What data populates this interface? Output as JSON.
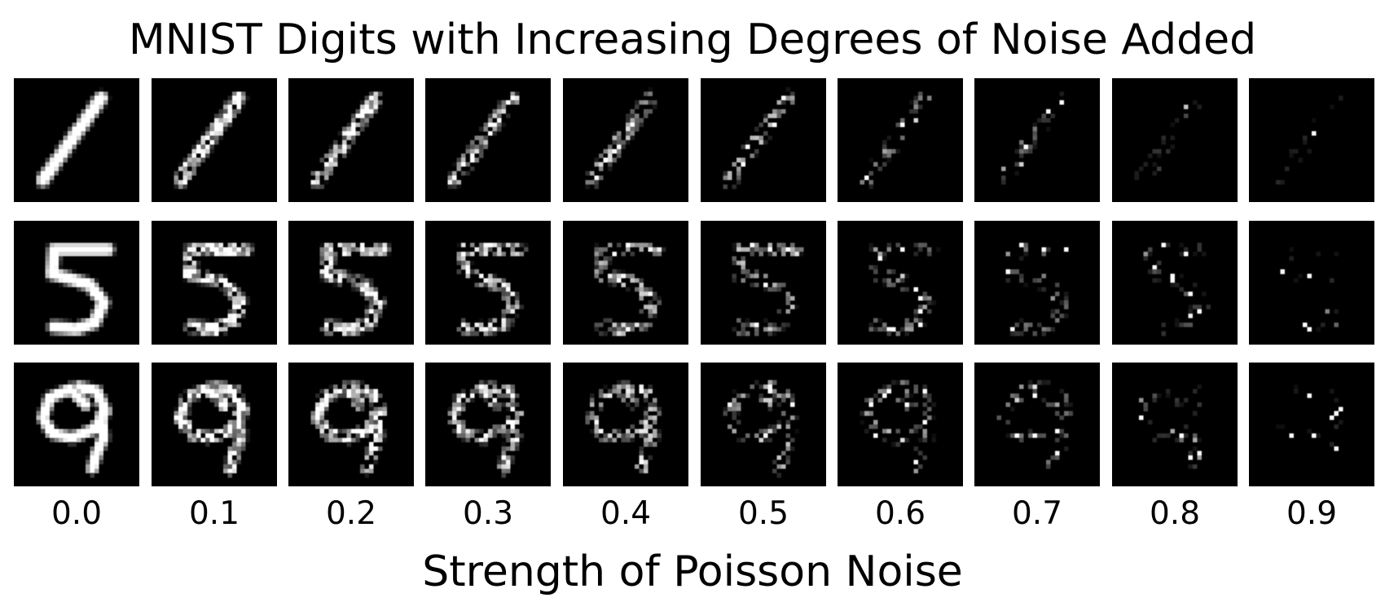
{
  "title": "MNIST Digits with Increasing Degrees of Noise Added",
  "x_axis_label": "Strength of Poisson Noise",
  "digits": [
    "1",
    "5",
    "9"
  ],
  "noise_levels": [
    "0.0",
    "0.1",
    "0.2",
    "0.3",
    "0.4",
    "0.5",
    "0.6",
    "0.7",
    "0.8",
    "0.9"
  ],
  "noise_values": [
    0.0,
    0.1,
    0.2,
    0.3,
    0.4,
    0.5,
    0.6,
    0.7,
    0.8,
    0.9
  ],
  "colors": {
    "panel_background": "#000000",
    "digit_stroke": "#ffffff",
    "page_background": "#ffffff"
  }
}
